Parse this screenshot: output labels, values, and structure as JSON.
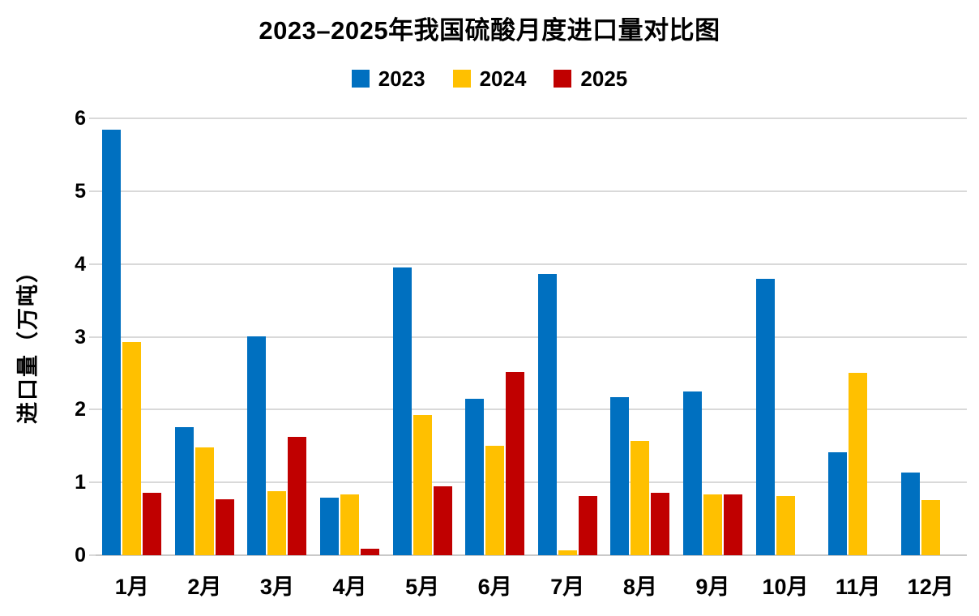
{
  "chart": {
    "title": "2023–2025年我国硫酸月度进口量对比图"
  },
  "chart_data": {
    "type": "bar",
    "title": "2023–2025年我国硫酸月度进口量对比图",
    "categories": [
      "1月",
      "2月",
      "3月",
      "4月",
      "5月",
      "6月",
      "7月",
      "8月",
      "9月",
      "10月",
      "11月",
      "12月"
    ],
    "series": [
      {
        "name": "2023",
        "color": "#0070C0",
        "values": [
          5.84,
          1.76,
          3.01,
          0.79,
          3.95,
          2.15,
          3.86,
          2.17,
          2.25,
          3.8,
          1.41,
          1.14
        ]
      },
      {
        "name": "2024",
        "color": "#FFC000",
        "values": [
          2.93,
          1.48,
          0.88,
          0.84,
          1.93,
          1.5,
          0.07,
          1.57,
          0.84,
          0.81,
          2.5,
          0.76
        ]
      },
      {
        "name": "2025",
        "color": "#C00000",
        "values": [
          0.86,
          0.77,
          1.63,
          0.09,
          0.95,
          2.52,
          0.81,
          0.86,
          0.84,
          null,
          null,
          null
        ]
      }
    ],
    "xlabel": "",
    "ylabel": "进口量（万吨）",
    "ylim": [
      0,
      6
    ],
    "yticks": [
      0,
      1,
      2,
      3,
      4,
      5,
      6
    ],
    "grid": "horizontal",
    "gridline_color": "#D9D9D9",
    "legend_position": "top-center",
    "background_color": "#FFFFFF",
    "text_color": "#000000"
  }
}
